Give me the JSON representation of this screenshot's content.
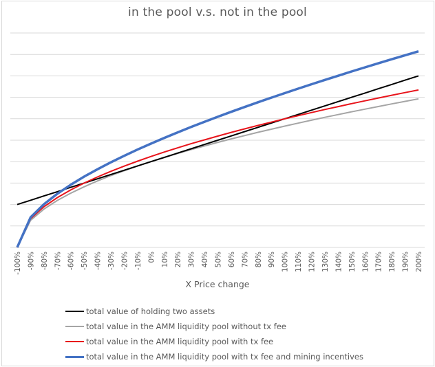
{
  "chart_data": {
    "type": "line",
    "title": "in the pool v.s. not in the pool",
    "xlabel": "X Price change",
    "ylabel": "",
    "ylim": [
      0,
      2.5
    ],
    "y_gridlines": [
      0,
      0.25,
      0.5,
      0.75,
      1.0,
      1.25,
      1.5,
      1.75,
      2.0,
      2.25,
      2.5
    ],
    "y_tick_labels_visible": false,
    "grid": true,
    "legend_position": "bottom",
    "categories": [
      "-100%",
      "-90%",
      "-80%",
      "-70%",
      "-60%",
      "-50%",
      "-40%",
      "-30%",
      "-20%",
      "-10%",
      "0%",
      "10%",
      "20%",
      "30%",
      "40%",
      "50%",
      "60%",
      "70%",
      "80%",
      "90%",
      "100%",
      "110%",
      "120%",
      "130%",
      "140%",
      "150%",
      "160%",
      "170%",
      "180%",
      "190%",
      "200%"
    ],
    "series": [
      {
        "name": "total value of holding two assets",
        "color": "#000000",
        "width": 2,
        "values": [
          0.5,
          0.55,
          0.6,
          0.65,
          0.7,
          0.75,
          0.8,
          0.85,
          0.9,
          0.95,
          1.0,
          1.05,
          1.1,
          1.15,
          1.2,
          1.25,
          1.3,
          1.35,
          1.4,
          1.45,
          1.5,
          1.55,
          1.6,
          1.65,
          1.7,
          1.75,
          1.8,
          1.85,
          1.9,
          1.95,
          2.0
        ]
      },
      {
        "name": "total value in the AMM liquidity pool without tx fee",
        "color": "#a5a5a5",
        "width": 2,
        "values": [
          0,
          0.316,
          0.447,
          0.548,
          0.632,
          0.707,
          0.775,
          0.837,
          0.894,
          0.949,
          1.0,
          1.049,
          1.095,
          1.14,
          1.183,
          1.225,
          1.265,
          1.304,
          1.342,
          1.378,
          1.414,
          1.449,
          1.483,
          1.517,
          1.549,
          1.581,
          1.612,
          1.643,
          1.673,
          1.703,
          1.732
        ]
      },
      {
        "name": "total value in the AMM liquidity pool with tx fee",
        "color": "#e8141b",
        "width": 2,
        "values": [
          0,
          0.335,
          0.474,
          0.581,
          0.67,
          0.75,
          0.821,
          0.887,
          0.948,
          1.006,
          1.06,
          1.112,
          1.161,
          1.209,
          1.254,
          1.298,
          1.341,
          1.382,
          1.422,
          1.461,
          1.499,
          1.536,
          1.572,
          1.608,
          1.642,
          1.676,
          1.709,
          1.742,
          1.774,
          1.805,
          1.836
        ]
      },
      {
        "name": "total value in the AMM liquidity pool with tx fee and mining incentives",
        "color": "#4472c4",
        "width": 3.5,
        "values": [
          0,
          0.35,
          0.504,
          0.626,
          0.73,
          0.825,
          0.911,
          0.992,
          1.068,
          1.141,
          1.21,
          1.277,
          1.341,
          1.404,
          1.464,
          1.523,
          1.581,
          1.637,
          1.692,
          1.746,
          1.799,
          1.851,
          1.902,
          1.953,
          2.002,
          2.051,
          2.099,
          2.147,
          2.194,
          2.24,
          2.286
        ]
      }
    ]
  }
}
